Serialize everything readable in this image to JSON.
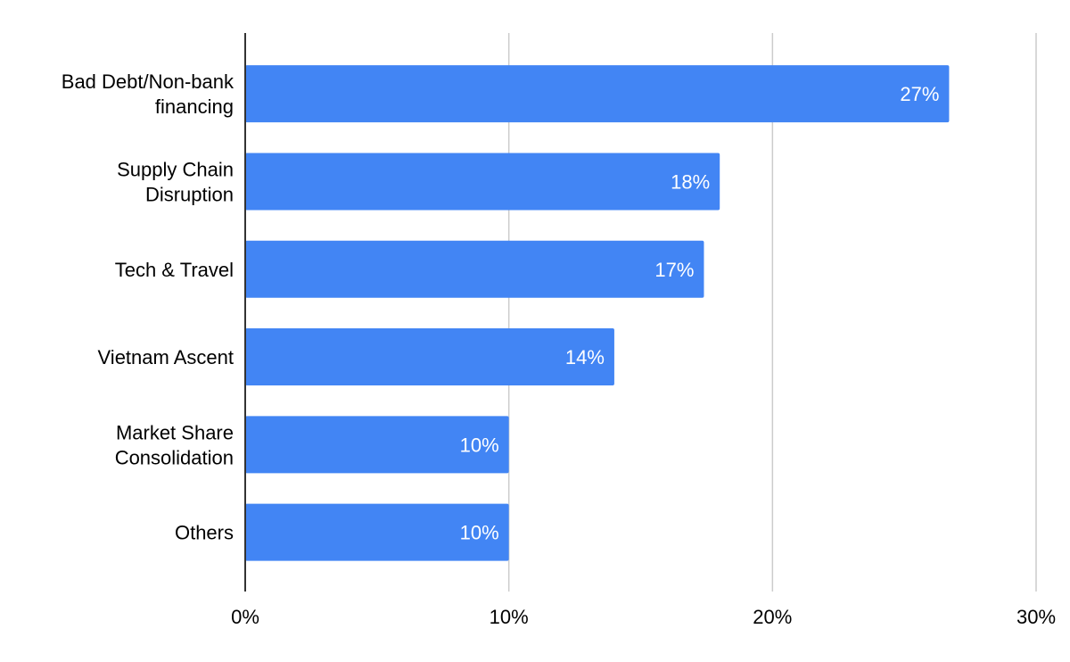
{
  "chart_data": {
    "type": "bar",
    "orientation": "horizontal",
    "title": "",
    "xlabel": "",
    "ylabel": "",
    "categories": [
      [
        "Bad Debt/Non-bank",
        "financing"
      ],
      [
        "Supply Chain",
        "Disruption"
      ],
      [
        "Tech & Travel"
      ],
      [
        "Vietnam Ascent"
      ],
      [
        "Market Share",
        "Consolidation"
      ],
      [
        "Others"
      ]
    ],
    "values": [
      26.7,
      18.0,
      17.4,
      14.0,
      10.0,
      10.0
    ],
    "data_labels": [
      "27%",
      "18%",
      "17%",
      "14%",
      "10%",
      "10%"
    ],
    "xlim": [
      0,
      30
    ],
    "ticks": [
      0,
      10,
      20,
      30
    ],
    "tick_labels": [
      "0%",
      "10%",
      "20%",
      "30%"
    ],
    "grid": true,
    "legend": "none",
    "bar_color": "#4285f4",
    "grid_color": "#cccccc",
    "axis_color": "#333333"
  }
}
